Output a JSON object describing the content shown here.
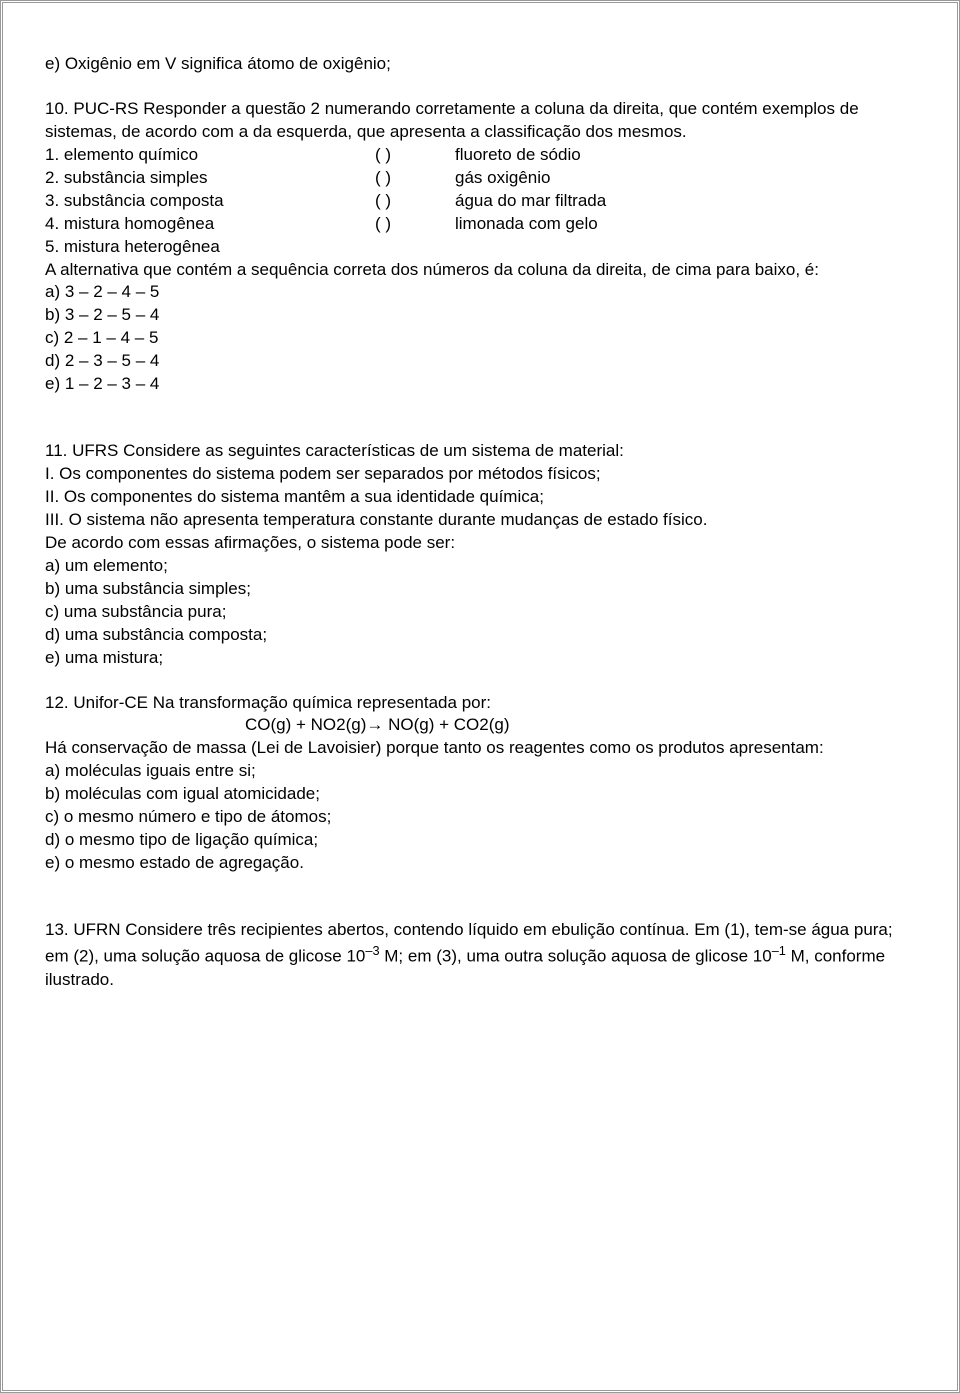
{
  "q9e": "e) Oxigênio em V significa átomo de oxigênio;",
  "q10": {
    "intro": "10. PUC-RS Responder a questão 2 numerando corretamente a coluna da direita, que contém exemplos de sistemas, de acordo com a da esquerda, que apresenta a classificação dos mesmos.",
    "rows": [
      {
        "left": "1. elemento químico",
        "paren": "(       )",
        "right": "fluoreto de sódio"
      },
      {
        "left": "2. substância simples",
        "paren": "(       )",
        "right": "gás oxigênio"
      },
      {
        "left": "3. substância composta",
        "paren": "(       )",
        "right": "água do mar filtrada"
      },
      {
        "left": "4. mistura homogênea",
        "paren": "(       )",
        "right": "limonada com gelo"
      },
      {
        "left": "5. mistura heterogênea",
        "paren": "",
        "right": ""
      }
    ],
    "stem": "A alternativa que contém a sequência correta dos números da coluna da direita, de cima para baixo, é:",
    "opts": [
      "a) 3 – 2 – 4 – 5",
      "b) 3 – 2 – 5 – 4",
      "c) 2 – 1 – 4 – 5",
      "d) 2 – 3 – 5 – 4",
      "e) 1 – 2 – 3 – 4"
    ]
  },
  "q11": {
    "lines": [
      "11. UFRS Considere as seguintes características de um sistema de material:",
      "I. Os componentes do sistema podem ser separados por métodos físicos;",
      "II. Os componentes do sistema mantêm a sua identidade química;",
      "III. O sistema não apresenta temperatura constante durante mudanças de estado físico.",
      "De acordo com essas afirmações, o sistema pode ser:",
      "a) um elemento;",
      "b) uma substância simples;",
      "c) uma substância pura;",
      "d) uma substância composta;",
      "e) uma mistura;"
    ]
  },
  "q12": {
    "l1": "12. Unifor-CE Na transformação química representada por:",
    "eq": "CO(g) + NO2(g)→ NO(g) + CO2(g)",
    "l2": "Há conservação de massa (Lei de Lavoisier) porque tanto os reagentes como os produtos apresentam:",
    "opts": [
      "a) moléculas iguais entre si;",
      "b) moléculas com igual atomicidade;",
      "c) o mesmo número e tipo de átomos;",
      "d) o mesmo tipo de ligação química;",
      "e) o mesmo estado de agregação."
    ]
  },
  "q13": {
    "p1a": "13. UFRN Considere três recipientes abertos, contendo líquido em ebulição contínua. Em (1), tem-se água pura; em (2), uma solução aquosa de glicose 10",
    "sup1": "–3",
    "p1b": " M; em (3), uma outra solução aquosa de glicose 10",
    "sup2": "–1",
    "p1c": " M, conforme ilustrado."
  }
}
